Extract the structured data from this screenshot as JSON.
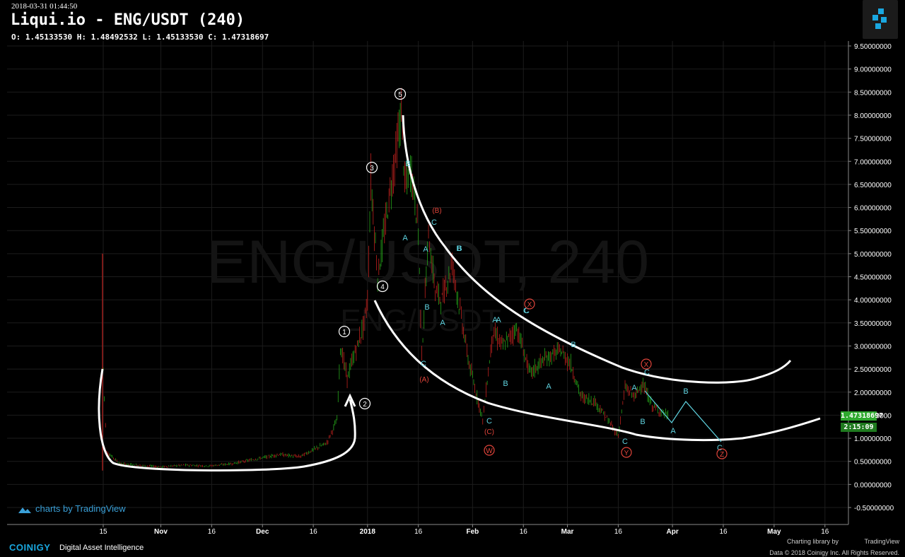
{
  "header": {
    "timestamp": "2018-03-31 01:44:50",
    "title": "Liqui.io - ENG/USDT (240)",
    "ohlc": "O: 1.45133530 H: 1.48492532 L: 1.45133530 C: 1.47318697"
  },
  "watermark": {
    "main": "ENG/USDT, 240",
    "sub": "ENG/USDT"
  },
  "price_labels": {
    "current": "1.47318697",
    "countdown": "2:15:09"
  },
  "footer": {
    "tradingview_credit": "charts by TradingView",
    "brand": "COINIGY",
    "brand_sub": "Digital Asset Intelligence",
    "library_credit": "Charting library by",
    "tradingview_small": "TradingView",
    "data_credit": "Data © 2018 Coinigy Inc. All Rights Reserved."
  },
  "colors": {
    "background": "#000000",
    "up_candle": "#26a61a",
    "down_candle": "#c0221e",
    "grid": "#1c1c1c",
    "annotation_cyan": "#5fd3e0",
    "annotation_red": "#e0443a",
    "channel_line": "#ffffff",
    "current_price": "#2ea92e"
  },
  "chart_data": {
    "type": "line",
    "title": "",
    "xlabel": "",
    "ylabel": "",
    "ylim": [
      -0.6,
      9.6
    ],
    "x_tick_labels": [
      "15",
      "Nov",
      "16",
      "Dec",
      "16",
      "2018",
      "16",
      "Feb",
      "16",
      "Mar",
      "16",
      "Apr",
      "16",
      "May",
      "16"
    ],
    "y_tick_labels": [
      "9.50000000",
      "9.00000000",
      "8.50000000",
      "8.00000000",
      "7.50000000",
      "7.00000000",
      "6.50000000",
      "6.00000000",
      "5.50000000",
      "5.00000000",
      "4.50000000",
      "4.00000000",
      "3.50000000",
      "3.00000000",
      "2.50000000",
      "2.00000000",
      "1.50000000",
      "1.00000000",
      "0.50000000",
      "0.00000000",
      "-0.50000000"
    ],
    "series": [
      {
        "values": [
          [
            "2017-10-15",
            2.5
          ],
          [
            "2017-10-16",
            0.7
          ],
          [
            "2017-10-20",
            0.45
          ],
          [
            "2017-10-25",
            0.42
          ],
          [
            "2017-11-01",
            0.38
          ],
          [
            "2017-11-08",
            0.42
          ],
          [
            "2017-11-15",
            0.4
          ],
          [
            "2017-11-22",
            0.45
          ],
          [
            "2017-11-29",
            0.55
          ],
          [
            "2017-12-06",
            0.65
          ],
          [
            "2017-12-12",
            0.6
          ],
          [
            "2017-12-16",
            0.75
          ],
          [
            "2017-12-20",
            0.9
          ],
          [
            "2017-12-23",
            1.4
          ],
          [
            "2017-12-24",
            3.0
          ],
          [
            "2017-12-26",
            2.3
          ],
          [
            "2017-12-28",
            2.8
          ],
          [
            "2017-12-29",
            3.0
          ],
          [
            "2017-12-31",
            3.5
          ],
          [
            "2018-01-01",
            4.0
          ],
          [
            "2018-01-02",
            6.6
          ],
          [
            "2018-01-04",
            4.5
          ],
          [
            "2018-01-06",
            5.5
          ],
          [
            "2018-01-08",
            6.5
          ],
          [
            "2018-01-10",
            7.5
          ],
          [
            "2018-01-11",
            8.1
          ],
          [
            "2018-01-12",
            6.5
          ],
          [
            "2018-01-14",
            6.8
          ],
          [
            "2018-01-16",
            5.5
          ],
          [
            "2018-01-17",
            2.8
          ],
          [
            "2018-01-19",
            5.4
          ],
          [
            "2018-01-21",
            4.2
          ],
          [
            "2018-01-23",
            4.0
          ],
          [
            "2018-01-26",
            4.8
          ],
          [
            "2018-01-28",
            3.9
          ],
          [
            "2018-01-31",
            2.6
          ],
          [
            "2018-02-04",
            1.4
          ],
          [
            "2018-02-07",
            3.3
          ],
          [
            "2018-02-10",
            3.0
          ],
          [
            "2018-02-14",
            3.4
          ],
          [
            "2018-02-18",
            2.4
          ],
          [
            "2018-02-22",
            2.7
          ],
          [
            "2018-02-27",
            2.9
          ],
          [
            "2018-03-02",
            2.6
          ],
          [
            "2018-03-05",
            1.9
          ],
          [
            "2018-03-09",
            1.8
          ],
          [
            "2018-03-12",
            1.5
          ],
          [
            "2018-03-16",
            1.05
          ],
          [
            "2018-03-18",
            2.1
          ],
          [
            "2018-03-21",
            1.9
          ],
          [
            "2018-03-23",
            2.2
          ],
          [
            "2018-03-26",
            1.7
          ],
          [
            "2018-03-31",
            1.47
          ]
        ]
      }
    ],
    "annotations": {
      "wave_numbers": [
        "1",
        "2",
        "3",
        "4",
        "5"
      ],
      "cyan_labels": [
        "B",
        "C",
        "A",
        "A",
        "B",
        "C",
        "B",
        "A",
        "C",
        "A",
        "B",
        "C",
        "A",
        "B",
        "C",
        "B",
        "A",
        "C",
        "C",
        "A",
        "B",
        "A",
        "B",
        "C"
      ],
      "red_labels": [
        "(B)",
        "(A)",
        "(C)",
        "W",
        "X",
        "X",
        "Y",
        "Z"
      ]
    }
  }
}
